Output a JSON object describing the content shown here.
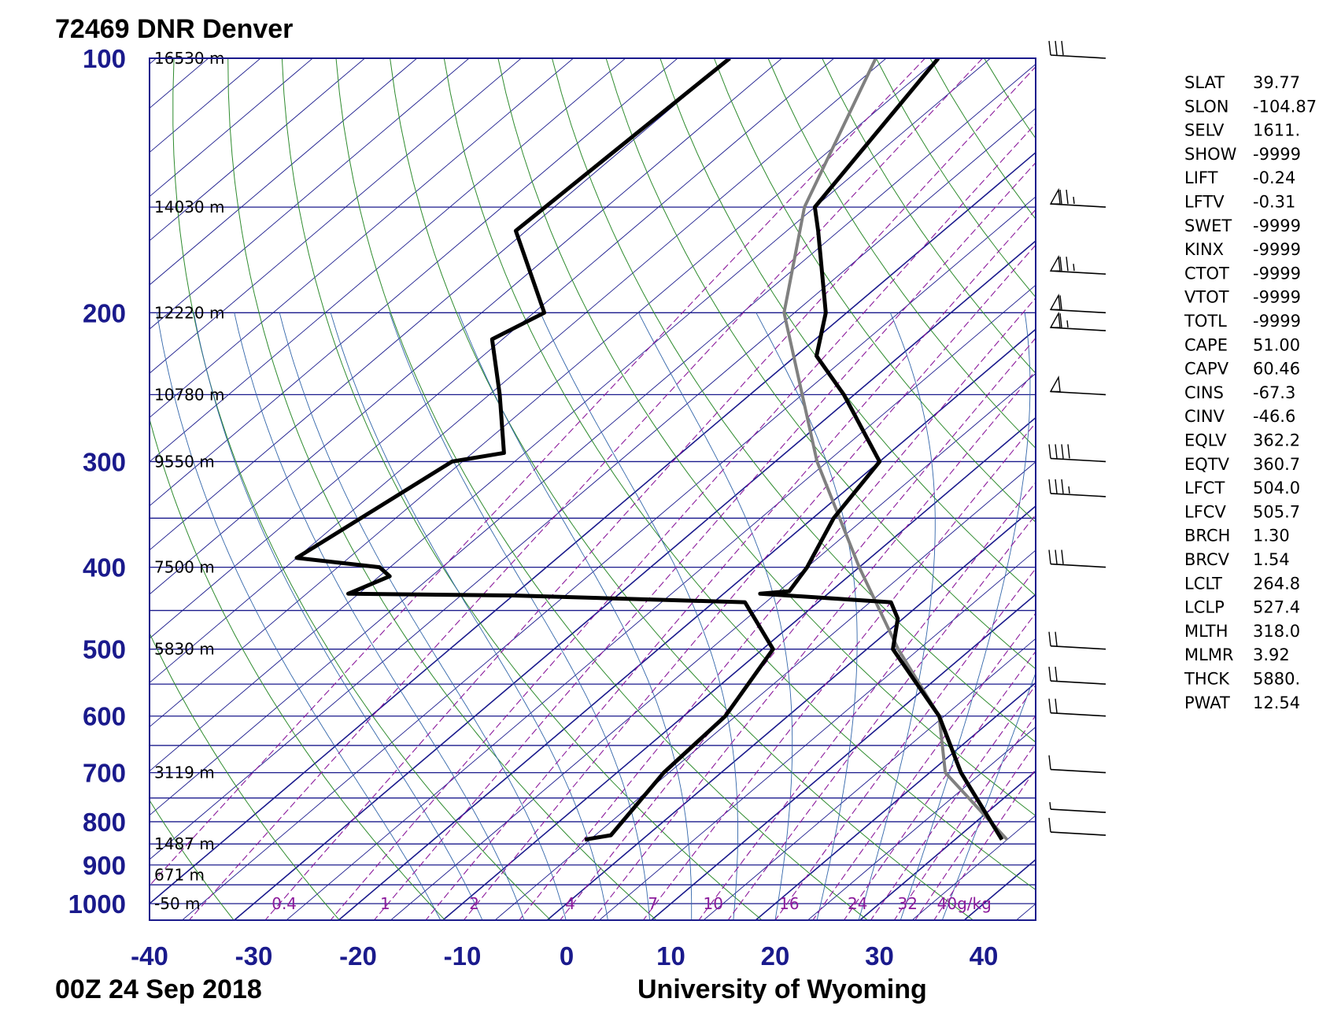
{
  "chart_data": {
    "type": "skew-t",
    "title": "72469 DNR Denver",
    "date_label": "00Z 24 Sep 2018",
    "footer": "University of Wyoming",
    "x_axis": {
      "ticks": [
        -40,
        -30,
        -20,
        -10,
        0,
        10,
        20,
        30,
        40
      ],
      "range": [
        -40,
        45
      ]
    },
    "pressure_axis": {
      "ticks": [
        100,
        200,
        300,
        400,
        500,
        600,
        700,
        800,
        900,
        1000
      ]
    },
    "height_labels": [
      {
        "p": 100,
        "text": "16530 m"
      },
      {
        "p": 150,
        "text": "14030 m"
      },
      {
        "p": 200,
        "text": "12220 m"
      },
      {
        "p": 250,
        "text": "10780 m"
      },
      {
        "p": 300,
        "text": "9550 m"
      },
      {
        "p": 400,
        "text": "7500 m"
      },
      {
        "p": 500,
        "text": "5830 m"
      },
      {
        "p": 700,
        "text": "3119 m"
      },
      {
        "p": 850,
        "text": "1487 m"
      },
      {
        "p": 925,
        "text": "671 m"
      },
      {
        "p": 1000,
        "text": "-50 m"
      }
    ],
    "mixing_ratio_labels": [
      {
        "w": 0.4,
        "text": "0.4"
      },
      {
        "w": 1,
        "text": "1"
      },
      {
        "w": 2,
        "text": "2"
      },
      {
        "w": 4,
        "text": "4"
      },
      {
        "w": 7,
        "text": "7"
      },
      {
        "w": 10,
        "text": "10"
      },
      {
        "w": 16,
        "text": "16"
      },
      {
        "w": 24,
        "text": "24"
      },
      {
        "w": 32,
        "text": "32"
      },
      {
        "w": 40,
        "text": "40g/kg"
      }
    ],
    "temperature": [
      [
        840,
        34.5
      ],
      [
        700,
        23
      ],
      [
        600,
        14.5
      ],
      [
        500,
        2.5
      ],
      [
        460,
        -0.5
      ],
      [
        440,
        -3
      ],
      [
        430,
        -16.5
      ],
      [
        427,
        -14
      ],
      [
        400,
        -15
      ],
      [
        350,
        -18
      ],
      [
        300,
        -20
      ],
      [
        250,
        -31
      ],
      [
        225,
        -38
      ],
      [
        200,
        -42
      ],
      [
        160,
        -52
      ],
      [
        150,
        -55
      ],
      [
        100,
        -60
      ]
    ],
    "dewpoint": [
      [
        840,
        -5.5
      ],
      [
        830,
        -3.5
      ],
      [
        700,
        -5.5
      ],
      [
        600,
        -6
      ],
      [
        500,
        -9
      ],
      [
        440,
        -17
      ],
      [
        432,
        -40
      ],
      [
        430,
        -56
      ],
      [
        410,
        -54
      ],
      [
        400,
        -56
      ],
      [
        390,
        -65
      ],
      [
        300,
        -61
      ],
      [
        293,
        -57
      ],
      [
        250,
        -64
      ],
      [
        215,
        -71
      ],
      [
        200,
        -69
      ],
      [
        160,
        -81
      ],
      [
        100,
        -80
      ]
    ],
    "parcel": [
      [
        840,
        35
      ],
      [
        700,
        21.5
      ],
      [
        600,
        14.5
      ],
      [
        500,
        3
      ],
      [
        400,
        -10
      ],
      [
        300,
        -26
      ],
      [
        200,
        -46
      ],
      [
        150,
        -56
      ],
      [
        100,
        -66
      ]
    ],
    "wind_barbs": [
      {
        "p": 100,
        "speed": 30
      },
      {
        "p": 150,
        "speed": 75
      },
      {
        "p": 180,
        "speed": 75
      },
      {
        "p": 200,
        "speed": 60
      },
      {
        "p": 210,
        "speed": 65
      },
      {
        "p": 250,
        "speed": 50
      },
      {
        "p": 300,
        "speed": 40
      },
      {
        "p": 330,
        "speed": 35
      },
      {
        "p": 400,
        "speed": 30
      },
      {
        "p": 500,
        "speed": 20
      },
      {
        "p": 550,
        "speed": 20
      },
      {
        "p": 600,
        "speed": 20
      },
      {
        "p": 700,
        "speed": 10
      },
      {
        "p": 780,
        "speed": 5
      },
      {
        "p": 830,
        "speed": 10
      }
    ],
    "indices": [
      {
        "name": "SLAT",
        "value": "39.77"
      },
      {
        "name": "SLON",
        "value": "-104.87"
      },
      {
        "name": "SELV",
        "value": "1611."
      },
      {
        "name": "SHOW",
        "value": "-9999"
      },
      {
        "name": "LIFT",
        "value": "-0.24"
      },
      {
        "name": "LFTV",
        "value": "-0.31"
      },
      {
        "name": "SWET",
        "value": "-9999"
      },
      {
        "name": "KINX",
        "value": "-9999"
      },
      {
        "name": "CTOT",
        "value": "-9999"
      },
      {
        "name": "VTOT",
        "value": "-9999"
      },
      {
        "name": "TOTL",
        "value": "-9999"
      },
      {
        "name": "CAPE",
        "value": "51.00"
      },
      {
        "name": "CAPV",
        "value": "60.46"
      },
      {
        "name": "CINS",
        "value": "-67.3"
      },
      {
        "name": "CINV",
        "value": "-46.6"
      },
      {
        "name": "EQLV",
        "value": "362.2"
      },
      {
        "name": "EQTV",
        "value": "360.7"
      },
      {
        "name": "LFCT",
        "value": "504.0"
      },
      {
        "name": "LFCV",
        "value": "505.7"
      },
      {
        "name": "BRCH",
        "value": "1.30"
      },
      {
        "name": "BRCV",
        "value": "1.54"
      },
      {
        "name": "LCLT",
        "value": "264.8"
      },
      {
        "name": "LCLP",
        "value": "527.4"
      },
      {
        "name": "MLTH",
        "value": "318.0"
      },
      {
        "name": "MLMR",
        "value": "3.92"
      },
      {
        "name": "THCK",
        "value": "5880."
      },
      {
        "name": "PWAT",
        "value": "12.54"
      }
    ],
    "colors": {
      "frame": "#1a1a8c",
      "isobar": "#1a1a8c",
      "isotherm": "#1a1a8c",
      "dry_adiabat": "#2e8b2e",
      "moist_adiabat": "#3366aa",
      "mixing_ratio": "#8b1a9b",
      "sounding": "#000000",
      "parcel": "#808080"
    }
  }
}
